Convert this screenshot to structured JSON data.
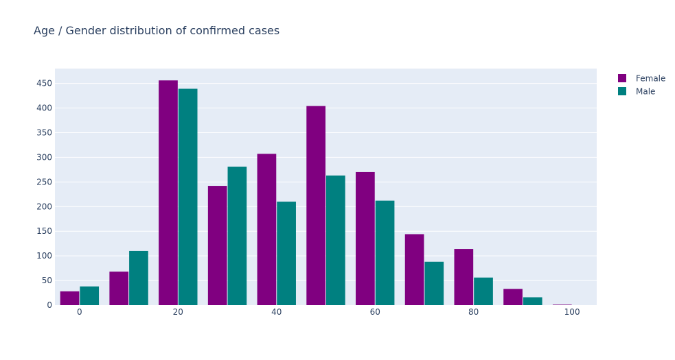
{
  "chart_data": {
    "type": "bar",
    "title": "Age / Gender distribution of confirmed cases",
    "xlabel": "",
    "ylabel": "",
    "x": [
      0,
      10,
      20,
      30,
      40,
      50,
      60,
      70,
      80,
      90,
      100
    ],
    "series": [
      {
        "name": "Female",
        "color": "#800080",
        "values": [
          28,
          68,
          456,
          242,
          307,
          404,
          270,
          144,
          114,
          33,
          1
        ]
      },
      {
        "name": "Male",
        "color": "#008080",
        "values": [
          38,
          110,
          439,
          281,
          210,
          263,
          212,
          88,
          56,
          16,
          0
        ]
      }
    ],
    "xticks": [
      "0",
      "20",
      "40",
      "60",
      "80",
      "100"
    ],
    "yticks": [
      "0",
      "50",
      "100",
      "150",
      "200",
      "250",
      "300",
      "350",
      "400",
      "450"
    ],
    "ylim": [
      0,
      480
    ],
    "grid": true,
    "legend_position": "top-right",
    "plot_background": "#e5ecf6"
  }
}
